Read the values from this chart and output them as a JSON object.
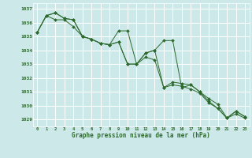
{
  "bg_color": "#cce8e8",
  "grid_color": "#ffffff",
  "line_color": "#2d6a2d",
  "marker_color": "#2d6a2d",
  "xlabel": "Graphe pression niveau de la mer (hPa)",
  "xlabel_color": "#2d6a2d",
  "ylim": [
    1028.5,
    1037.4
  ],
  "xlim": [
    -0.5,
    23.5
  ],
  "yticks": [
    1029,
    1030,
    1031,
    1032,
    1033,
    1034,
    1035,
    1036,
    1037
  ],
  "xticks": [
    0,
    1,
    2,
    3,
    4,
    5,
    6,
    7,
    8,
    9,
    10,
    11,
    12,
    13,
    14,
    15,
    16,
    17,
    18,
    19,
    20,
    21,
    22,
    23
  ],
  "series": [
    [
      1035.3,
      1036.5,
      1036.7,
      1036.3,
      1036.2,
      1035.0,
      1034.8,
      1034.5,
      1034.4,
      1035.4,
      1035.4,
      1033.0,
      1033.8,
      1034.0,
      1034.7,
      1034.7,
      1031.3,
      1031.5,
      1031.0,
      1030.3,
      1029.8,
      1029.1,
      1029.6,
      1029.2
    ],
    [
      1035.3,
      1036.5,
      1036.7,
      1036.3,
      1036.2,
      1035.0,
      1034.8,
      1034.5,
      1034.4,
      1034.6,
      1033.0,
      1033.0,
      1033.8,
      1034.0,
      1031.3,
      1031.7,
      1031.6,
      1031.5,
      1031.0,
      1030.5,
      1030.1,
      1029.1,
      1029.6,
      1029.2
    ],
    [
      1035.3,
      1036.5,
      1036.2,
      1036.2,
      1035.7,
      1035.0,
      1034.8,
      1034.5,
      1034.4,
      1034.6,
      1033.0,
      1033.0,
      1033.5,
      1033.3,
      1031.3,
      1031.5,
      1031.4,
      1031.2,
      1030.9,
      1030.2,
      1029.8,
      1029.1,
      1029.4,
      1029.1
    ]
  ]
}
